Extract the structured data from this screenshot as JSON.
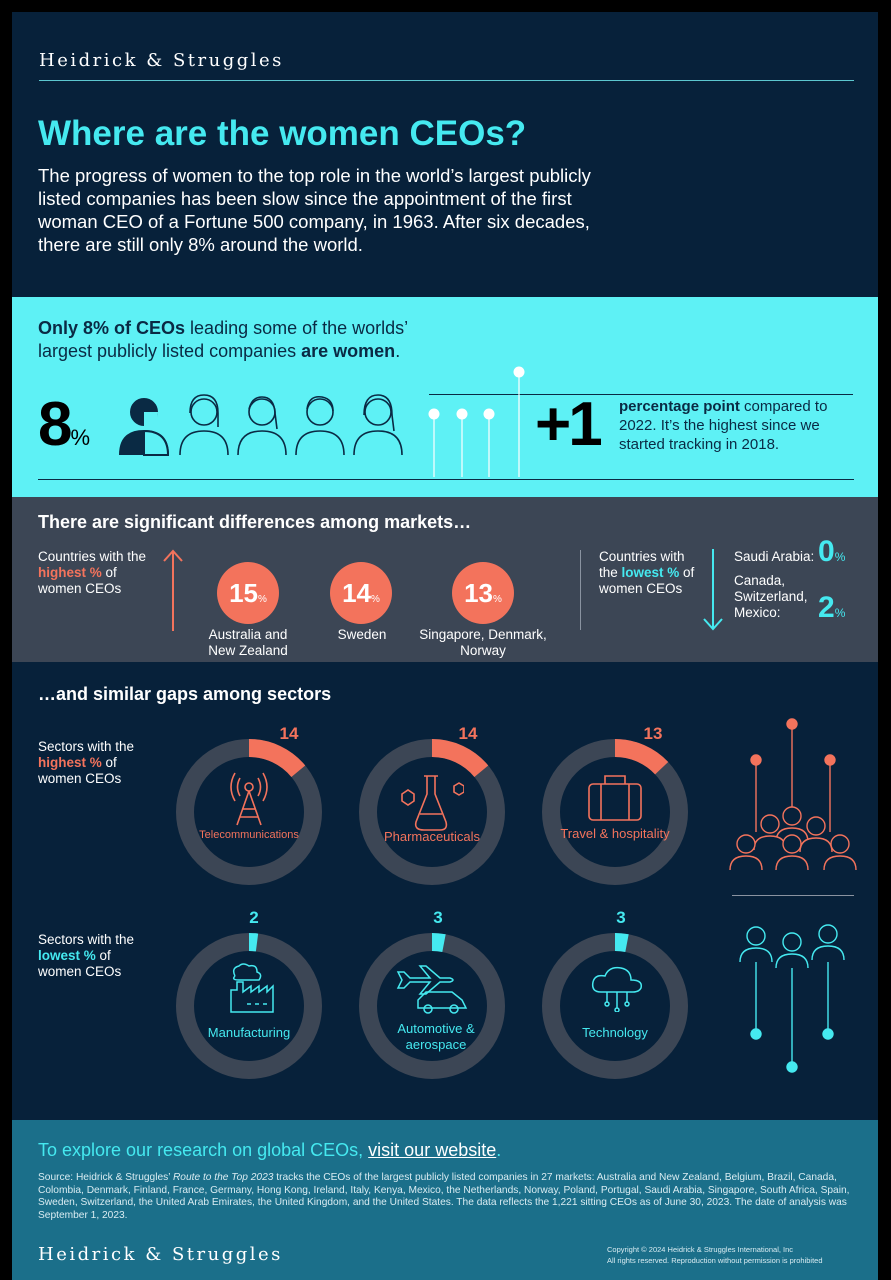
{
  "brand": "Heidrick & Struggles",
  "header": {
    "title": "Where are the women CEOs?",
    "intro": "The progress of women to the top role in the world’s largest publicly listed companies has been slow since the appointment of the first woman CEO of a Fortune 500 company, in 1963. After six decades, there are still only 8% around the world."
  },
  "highlight": {
    "line_bold1": "Only 8% of CEOs",
    "line_mid": " leading some of the worlds’ largest publicly listed companies ",
    "line_bold2": "are women",
    "line_end": ".",
    "big_value": "8",
    "pct_sign": "%",
    "change_value": "+1",
    "change_bold": "percentage point",
    "change_text": " compared to 2022. It’s the highest since we started tracking in 2018.",
    "share_women": 8
  },
  "markets": {
    "heading": "There are significant differences among markets…",
    "highest_label_pre": "Countries with the ",
    "highest_label_hl": "highest %",
    "highest_label_post": " of women CEOs",
    "highest": [
      {
        "value": "15",
        "name": "Australia and New Zealand"
      },
      {
        "value": "14",
        "name": "Sweden"
      },
      {
        "value": "13",
        "name": "Singapore, Denmark, Norway"
      }
    ],
    "lowest_label_pre": "Countries with the ",
    "lowest_label_hl": "lowest %",
    "lowest_label_post": " of women CEOs",
    "lowest": [
      {
        "name": "Saudi Arabia:",
        "value": "0"
      },
      {
        "name": "Canada, Switzerland, Mexico:",
        "value": "2"
      }
    ],
    "pct_sign": "%"
  },
  "sectors": {
    "heading": "…and similar gaps among sectors",
    "highest_label_pre": "Sectors with the ",
    "highest_label_hl": "highest %",
    "highest_label_post": " of women CEOs",
    "lowest_label_pre": "Sectors with the ",
    "lowest_label_hl": "lowest %",
    "lowest_label_post": " of women CEOs",
    "highest": [
      {
        "value": 14,
        "label": "Telecommunications",
        "icon": "tower-icon"
      },
      {
        "value": 14,
        "label": "Pharmaceuticals",
        "icon": "flask-icon"
      },
      {
        "value": 13,
        "label": "Travel & hospitality",
        "icon": "suitcase-icon"
      }
    ],
    "lowest": [
      {
        "value": 2,
        "label": "Manufacturing",
        "icon": "factory-icon"
      },
      {
        "value": 3,
        "label": "Automotive & aerospace",
        "icon": "plane-car-icon"
      },
      {
        "value": 3,
        "label": "Technology",
        "icon": "cloud-icon"
      }
    ]
  },
  "footer": {
    "explore_pre": "To explore our research on global CEOs, ",
    "explore_link": "visit our website",
    "explore_post": ".",
    "source_pre": "Source: Heidrick & Struggles’ ",
    "source_italic": "Route to the Top 2023",
    "source_post": " tracks the CEOs of the largest publicly listed companies in 27 markets: Australia and New Zealand, Belgium, Brazil, Canada, Colombia, Denmark, Finland, France, Germany, Hong Kong, Ireland, Italy, Kenya, Mexico, the Netherlands, Norway, Poland, Portugal, Saudi Arabia, Singapore, South Africa, Spain, Sweden, Switzerland, the United Arab Emirates, the United Kingdom, and the United States. The data reflects the 1,221 sitting CEOs as of June 30, 2023. The date of analysis was September 1, 2023.",
    "copyright1": "Copyright © 2024 Heidrick & Struggles International, Inc",
    "copyright2": "All rights reserved. Reproduction without permission is prohibited"
  },
  "colors": {
    "navy": "#07213a",
    "cyan": "#45e9f0",
    "band_cyan": "#5ef1f5",
    "coral": "#f3735c",
    "slate": "#3c4655",
    "teal": "#1b6f8a"
  }
}
